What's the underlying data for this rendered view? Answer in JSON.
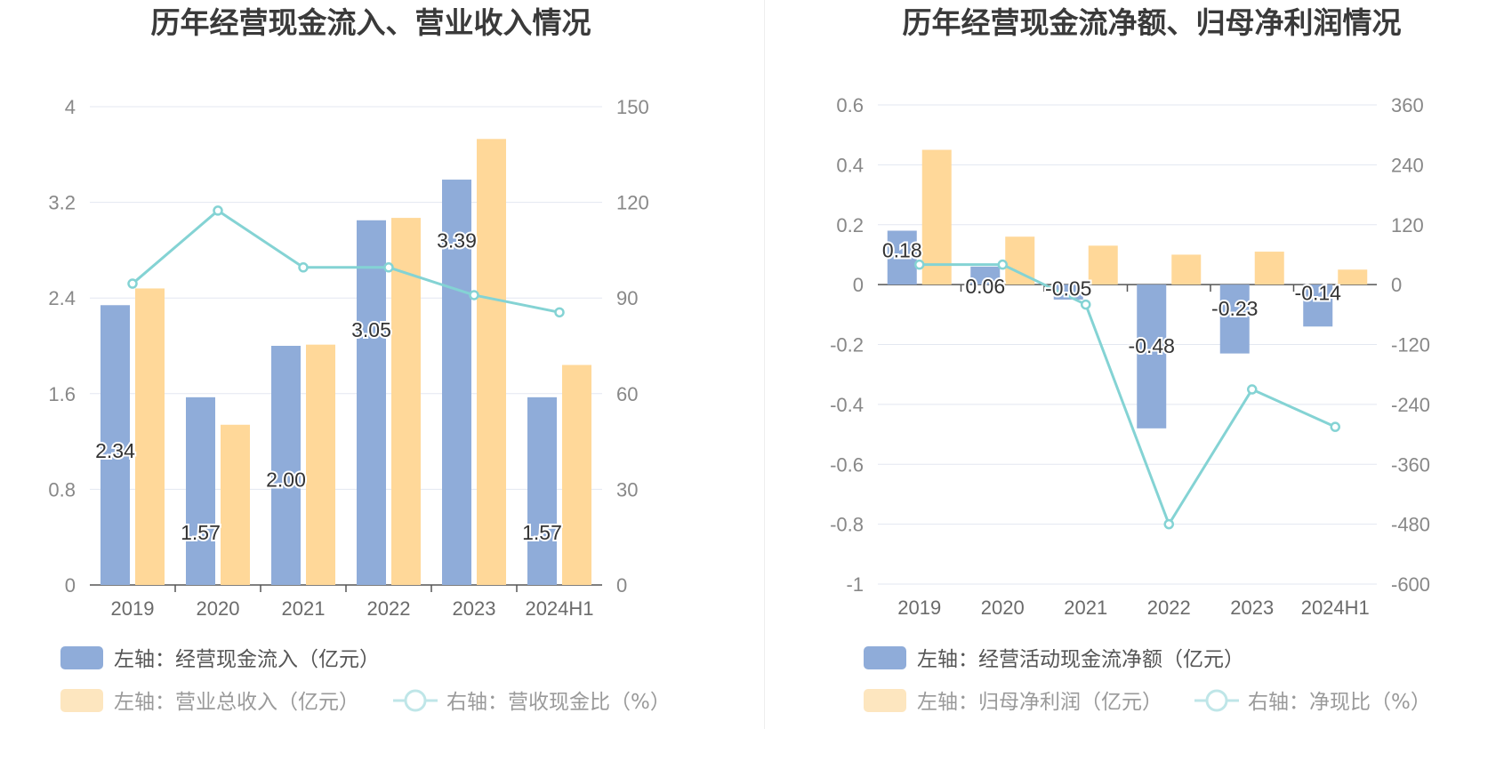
{
  "colors": {
    "cash_bar": "#8facd9",
    "revenue_bar": "#ffd899",
    "line": "#84d3d4",
    "grid": "#e3e7f1",
    "axis": "#555555"
  },
  "chart_data": [
    {
      "type": "bar",
      "title": "历年经营现金流入、营业收入情况",
      "categories": [
        "2019",
        "2020",
        "2021",
        "2022",
        "2023",
        "2024H1"
      ],
      "left_axis": {
        "ticks": [
          "0",
          "0.8",
          "1.6",
          "2.4",
          "3.2",
          "4"
        ],
        "ylim": [
          0,
          4
        ]
      },
      "right_axis": {
        "ticks": [
          "0",
          "30",
          "60",
          "90",
          "120",
          "150"
        ],
        "ylim": [
          0,
          150
        ]
      },
      "series": [
        {
          "name": "左轴：经营现金流入（亿元）",
          "kind": "bar",
          "axis": "left",
          "values": [
            2.34,
            1.57,
            2.0,
            3.05,
            3.39,
            1.57
          ],
          "labels": [
            "2.34",
            "1.57",
            "2.00",
            "3.05",
            "3.39",
            "1.57"
          ]
        },
        {
          "name": "左轴：营业总收入（亿元）",
          "kind": "bar",
          "axis": "left",
          "values": [
            2.48,
            1.34,
            2.01,
            3.07,
            3.73,
            1.84
          ]
        },
        {
          "name": "右轴：营收现金比（%）",
          "kind": "line",
          "axis": "right",
          "values": [
            94.5,
            117.4,
            99.6,
            99.6,
            90.9,
            85.5
          ]
        }
      ],
      "legend": [
        "左轴：经营现金流入（亿元）",
        "左轴：营业总收入（亿元）",
        "右轴：营收现金比（%）"
      ],
      "legend_placement": "bottom",
      "grid": true
    },
    {
      "type": "bar",
      "title": "历年经营现金流净额、归母净利润情况",
      "categories": [
        "2019",
        "2020",
        "2021",
        "2022",
        "2023",
        "2024H1"
      ],
      "left_axis": {
        "ticks": [
          "-1",
          "-0.8",
          "-0.6",
          "-0.4",
          "-0.2",
          "0",
          "0.2",
          "0.4",
          "0.6"
        ],
        "ylim": [
          -1,
          0.6
        ]
      },
      "right_axis": {
        "ticks": [
          "-600",
          "-480",
          "-360",
          "-240",
          "-120",
          "0",
          "120",
          "240",
          "360"
        ],
        "ylim": [
          -600,
          360
        ]
      },
      "series": [
        {
          "name": "左轴：经营活动现金流净额（亿元）",
          "kind": "bar",
          "axis": "left",
          "values": [
            0.18,
            0.06,
            -0.05,
            -0.48,
            -0.23,
            -0.14
          ],
          "labels": [
            "0.18",
            "0.06",
            "-0.05",
            "-0.48",
            "-0.23",
            "-0.14"
          ]
        },
        {
          "name": "左轴：归母净利润（亿元）",
          "kind": "bar",
          "axis": "left",
          "values": [
            0.45,
            0.16,
            0.13,
            0.1,
            0.11,
            0.05
          ]
        },
        {
          "name": "右轴：净现比（%）",
          "kind": "line",
          "axis": "right",
          "values": [
            40,
            40,
            -40,
            -480,
            -210,
            -285
          ]
        }
      ],
      "legend": [
        "左轴：经营活动现金流净额（亿元）",
        "左轴：归母净利润（亿元）",
        "右轴：净现比（%）"
      ],
      "legend_placement": "bottom",
      "grid": true
    }
  ]
}
